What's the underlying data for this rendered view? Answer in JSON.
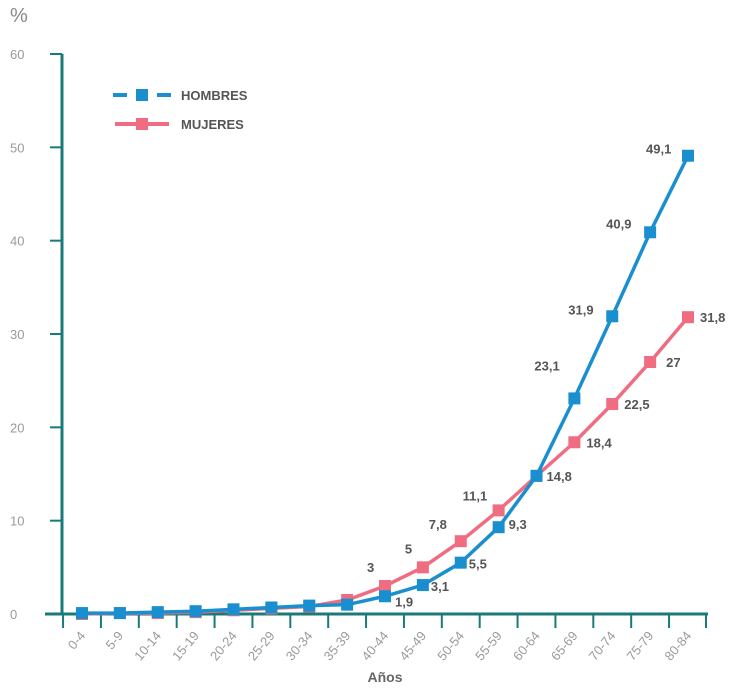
{
  "chart_data": {
    "type": "line",
    "ylabel": "%",
    "xlabel": "Años",
    "ylim": [
      0,
      60
    ],
    "yticks": [
      0,
      10,
      20,
      30,
      40,
      50,
      60
    ],
    "grid": false,
    "legend_placement": "top-left",
    "categories": [
      "0-4",
      "5-9",
      "10-14",
      "15-19",
      "20-24",
      "25-29",
      "30-34",
      "35-39",
      "40-44",
      "45-49",
      "50-54",
      "55-59",
      "60-64",
      "65-69",
      "70-74",
      "75-79",
      "80-84"
    ],
    "series": [
      {
        "name": "HOMBRES",
        "color": "#1a8fd0",
        "values": [
          0.1,
          0.1,
          0.2,
          0.3,
          0.5,
          0.7,
          0.9,
          1.0,
          1.9,
          3.1,
          5.5,
          9.3,
          14.8,
          23.1,
          31.9,
          40.9,
          49.1
        ],
        "labels": [
          null,
          null,
          null,
          null,
          null,
          null,
          null,
          null,
          "1,9",
          "3,1",
          "5,5",
          "9,3",
          null,
          "23,1",
          "31,9",
          "40,9",
          "49,1"
        ]
      },
      {
        "name": "MUJERES",
        "color": "#f06c80",
        "values": [
          0,
          0.1,
          0.1,
          0.2,
          0.4,
          0.6,
          0.8,
          1.5,
          3,
          5,
          7.8,
          11.1,
          14.8,
          18.4,
          22.5,
          27,
          31.8
        ],
        "labels": [
          null,
          null,
          null,
          null,
          null,
          null,
          null,
          null,
          "3",
          "5",
          "7,8",
          "11,1",
          "14,8",
          "18,4",
          "22,5",
          "27",
          "31,8"
        ]
      }
    ],
    "axis_color": "#1a7a7a"
  }
}
